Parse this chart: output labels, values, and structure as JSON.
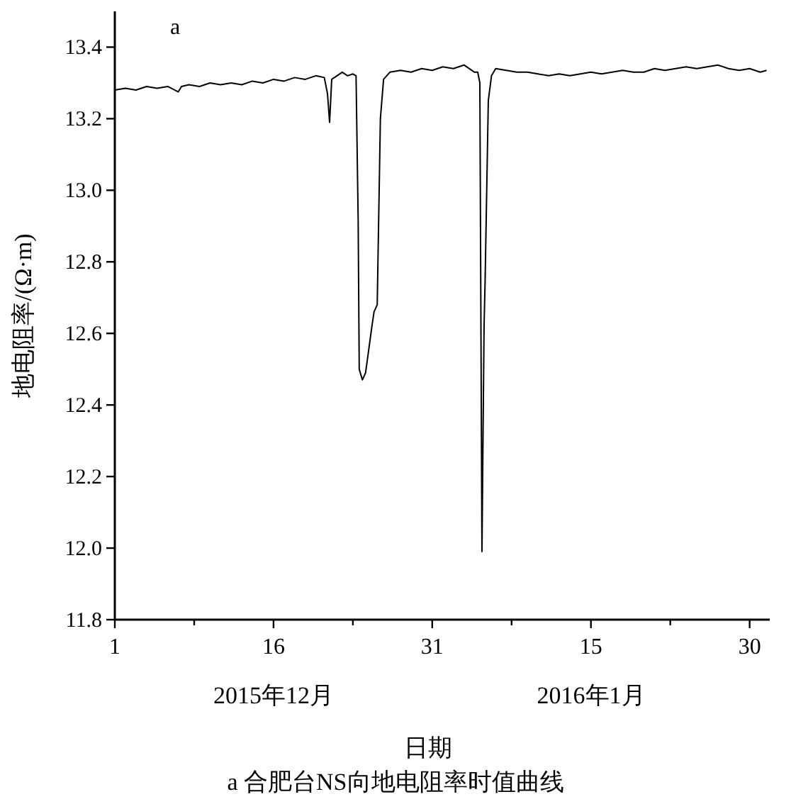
{
  "chart_data": {
    "type": "line",
    "xlabel": "日期",
    "ylabel": "地电阻率/(Ω·m)",
    "annotations": [
      "a",
      "2015年12月",
      "2016年1月",
      "a 合肥台NS向地电阻率时值曲线"
    ],
    "xlim": [
      "2015-12-01T00:00",
      "2016-01-31T21:36"
    ],
    "ylim": [
      11.8,
      13.5
    ],
    "xticks": [
      {
        "value": "2015-12-01T00:00",
        "label": "1"
      },
      {
        "value": "2015-12-08T12:00",
        "label": null
      },
      {
        "value": "2015-12-16T00:00",
        "label": "16"
      },
      {
        "value": "2015-12-23T12:00",
        "label": null
      },
      {
        "value": "2015-12-31T00:00",
        "label": "31"
      },
      {
        "value": "2016-01-07T12:00",
        "label": null
      },
      {
        "value": "2016-01-15T00:00",
        "label": "15"
      },
      {
        "value": "2016-01-22T12:00",
        "label": null
      },
      {
        "value": "2016-01-30T00:00",
        "label": "30"
      }
    ],
    "yticks": [
      11.8,
      {
        "value": 12.0,
        "label": "12.0"
      },
      12.2,
      12.4,
      12.6,
      12.8,
      {
        "value": 13.0,
        "label": "13.0"
      },
      13.2,
      13.4
    ],
    "grid": false,
    "series": [
      {
        "color": "#000000",
        "x": [
          "2015-12-01T00:00",
          "2015-12-02T00:00",
          "2015-12-03T00:00",
          "2015-12-04T00:00",
          "2015-12-05T00:00",
          "2015-12-06T00:00",
          "2015-12-07T00:00",
          "2015-12-07T07:12",
          "2015-12-08T00:00",
          "2015-12-09T00:00",
          "2015-12-10T00:00",
          "2015-12-11T00:00",
          "2015-12-12T00:00",
          "2015-12-13T00:00",
          "2015-12-14T00:00",
          "2015-12-15T00:00",
          "2015-12-16T00:00",
          "2015-12-17T00:00",
          "2015-12-18T00:00",
          "2015-12-19T00:00",
          "2015-12-20T00:00",
          "2015-12-20T19:12",
          "2015-12-21T02:24",
          "2015-12-21T07:12",
          "2015-12-21T12:00",
          "2015-12-22T00:00",
          "2015-12-22T12:00",
          "2015-12-23T00:00",
          "2015-12-23T12:00",
          "2015-12-23T19:12",
          "2015-12-24T00:00",
          "2015-12-24T02:24",
          "2015-12-24T09:36",
          "2015-12-24T16:48",
          "2015-12-25T07:12",
          "2015-12-25T12:00",
          "2015-12-25T19:12",
          "2015-12-26T02:24",
          "2015-12-26T09:36",
          "2015-12-27T00:00",
          "2015-12-28T00:00",
          "2015-12-29T00:00",
          "2015-12-30T00:00",
          "2015-12-31T00:00",
          "2016-01-01T00:00",
          "2016-01-02T00:00",
          "2016-01-03T00:00",
          "2016-01-04T00:00",
          "2016-01-04T07:12",
          "2016-01-04T12:00",
          "2016-01-04T16:48",
          "2016-01-04T21:36",
          "2016-01-05T00:00",
          "2016-01-05T07:12",
          "2016-01-05T14:24",
          "2016-01-06T00:00",
          "2016-01-07T00:00",
          "2016-01-08T00:00",
          "2016-01-09T00:00",
          "2016-01-10T00:00",
          "2016-01-11T00:00",
          "2016-01-12T00:00",
          "2016-01-13T00:00",
          "2016-01-14T00:00",
          "2016-01-15T00:00",
          "2016-01-16T00:00",
          "2016-01-17T00:00",
          "2016-01-18T00:00",
          "2016-01-19T00:00",
          "2016-01-20T00:00",
          "2016-01-21T00:00",
          "2016-01-22T00:00",
          "2016-01-23T00:00",
          "2016-01-24T00:00",
          "2016-01-25T00:00",
          "2016-01-26T00:00",
          "2016-01-27T00:00",
          "2016-01-28T00:00",
          "2016-01-29T00:00",
          "2016-01-30T00:00",
          "2016-01-31T00:00",
          "2016-01-31T14:24"
        ],
        "values": [
          13.28,
          13.285,
          13.28,
          13.29,
          13.285,
          13.29,
          13.275,
          13.29,
          13.295,
          13.29,
          13.3,
          13.295,
          13.3,
          13.295,
          13.305,
          13.3,
          13.31,
          13.305,
          13.315,
          13.31,
          13.32,
          13.315,
          13.27,
          13.19,
          13.31,
          13.32,
          13.33,
          13.32,
          13.325,
          13.32,
          12.92,
          12.5,
          12.47,
          12.49,
          12.62,
          12.66,
          12.68,
          13.2,
          13.31,
          13.33,
          13.335,
          13.33,
          13.34,
          13.335,
          13.345,
          13.34,
          13.35,
          13.33,
          13.33,
          13.3,
          11.99,
          12.62,
          12.75,
          13.25,
          13.32,
          13.34,
          13.335,
          13.33,
          13.33,
          13.325,
          13.32,
          13.325,
          13.32,
          13.325,
          13.33,
          13.325,
          13.33,
          13.335,
          13.33,
          13.33,
          13.34,
          13.335,
          13.34,
          13.345,
          13.34,
          13.345,
          13.35,
          13.34,
          13.335,
          13.34,
          13.33,
          13.335
        ]
      }
    ]
  }
}
